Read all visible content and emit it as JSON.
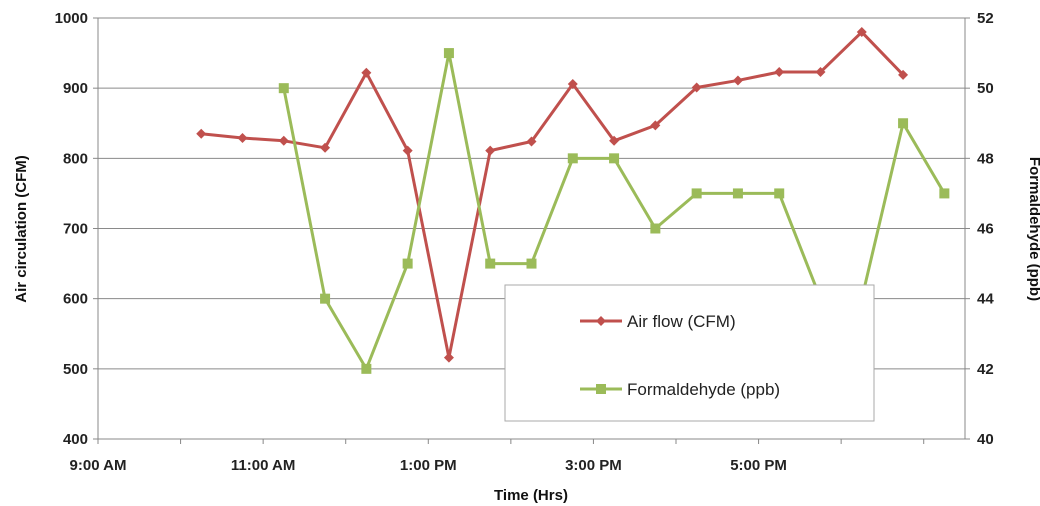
{
  "chart_data": {
    "type": "line",
    "title": "",
    "xlabel": "Time (Hrs)",
    "ylabel": "Air circulation (CFM)",
    "y2label": "Formaldehyde (ppb)",
    "x_ticks": [
      "9:00 AM",
      "11:00 AM",
      "1:00 PM",
      "3:00 PM",
      "5:00 PM"
    ],
    "y_ticks": [
      "400",
      "500",
      "600",
      "700",
      "800",
      "900",
      "1000"
    ],
    "y2_ticks": [
      "40",
      "42",
      "44",
      "46",
      "48",
      "50",
      "52"
    ],
    "xlim": [
      9,
      19.5
    ],
    "ylim": [
      400,
      1000
    ],
    "y2lim": [
      40,
      52
    ],
    "grid": "horizontal",
    "legend_position": "center-right",
    "series": [
      {
        "name": "Air flow (CFM)",
        "axis": "left",
        "color": "#c0504d",
        "marker": "diamond",
        "x": [
          10.25,
          10.75,
          11.25,
          11.75,
          12.25,
          12.75,
          13.25,
          13.75,
          14.25,
          14.75,
          15.25,
          15.75,
          16.25,
          16.75,
          17.25,
          17.75,
          18.25,
          18.75
        ],
        "y": [
          835,
          829,
          825,
          815,
          922,
          811,
          516,
          811,
          824,
          906,
          825,
          847,
          901,
          911,
          923,
          923,
          980,
          919
        ]
      },
      {
        "name": "Formaldehyde (ppb)",
        "axis": "right",
        "color": "#9bbb59",
        "marker": "square",
        "x": [
          11.25,
          11.75,
          12.25,
          12.75,
          13.25,
          13.75,
          14.25,
          14.75,
          15.25,
          15.75,
          16.25,
          16.75,
          17.25,
          17.75,
          18.25,
          18.75,
          19.25
        ],
        "y": [
          50,
          44,
          42,
          45,
          51,
          45,
          45,
          48,
          48,
          46,
          47,
          47,
          47,
          44,
          44,
          49,
          47
        ]
      }
    ]
  }
}
